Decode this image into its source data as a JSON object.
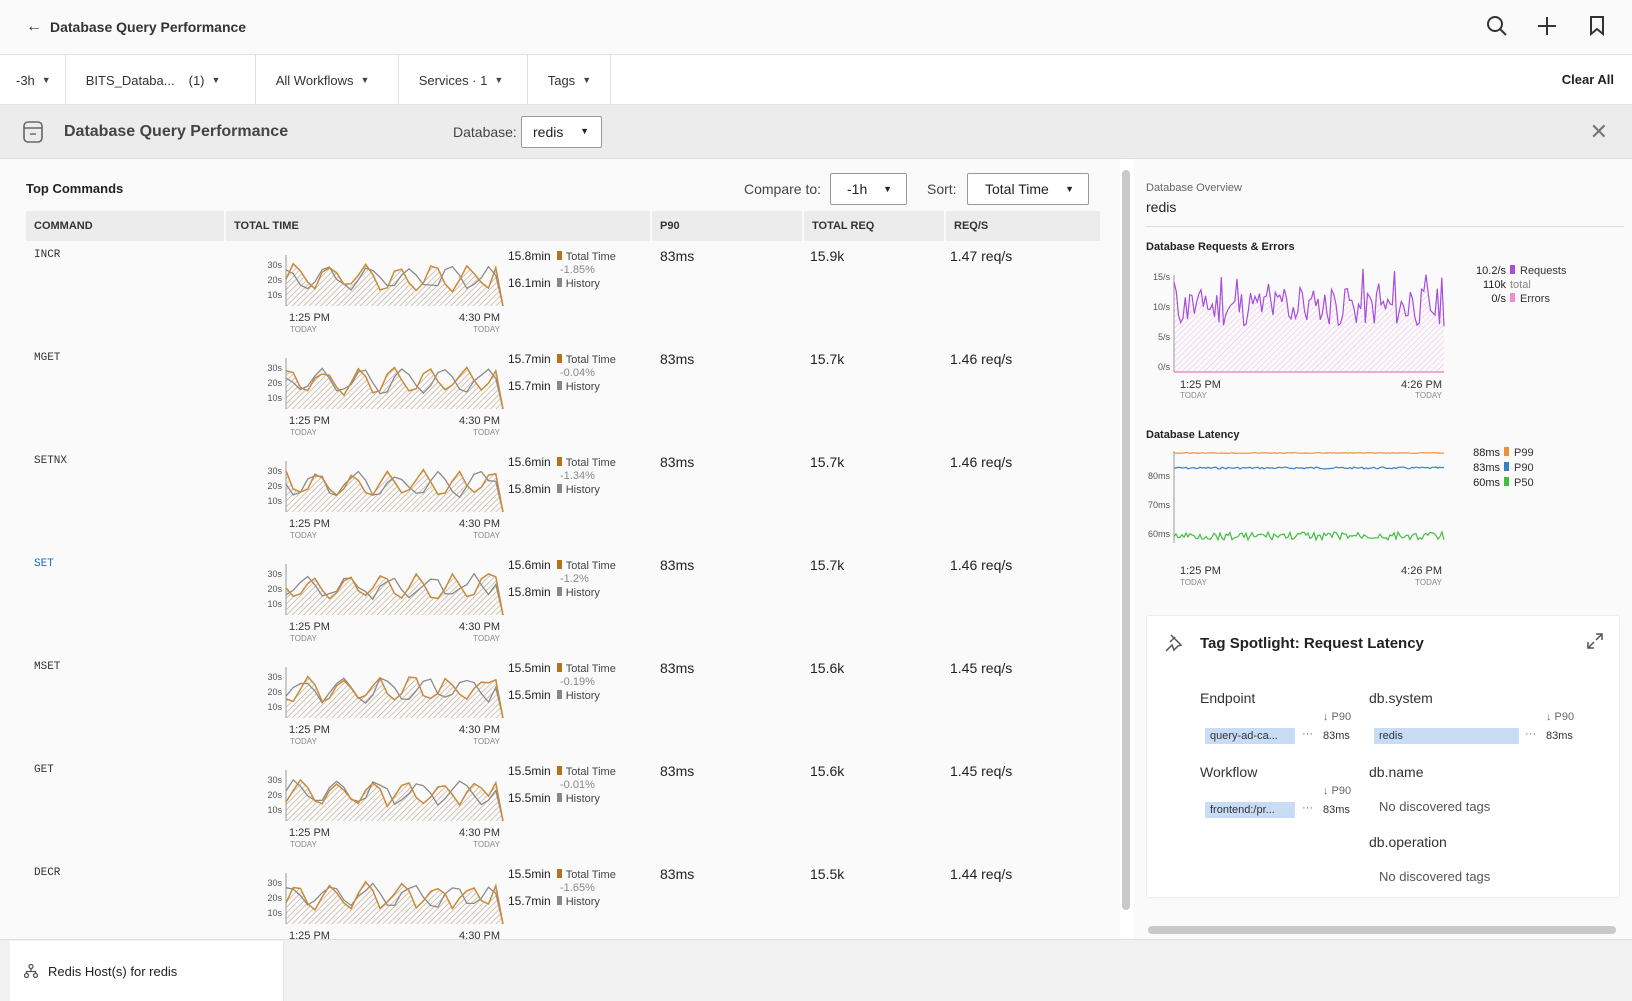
{
  "header": {
    "back_icon": "arrow-left-icon",
    "title": "Database Query Performance"
  },
  "filters": {
    "time": "-3h",
    "environment": "BITS_Databa...",
    "environment_count": "(1)",
    "workflows": "All Workflows",
    "services": "Services · 1",
    "tags": "Tags",
    "clear_all": "Clear All"
  },
  "panel": {
    "title": "Database Query Performance",
    "db_label": "Database:",
    "db_value": "redis"
  },
  "commands": {
    "title": "Top Commands",
    "compare_label": "Compare to:",
    "compare_value": "-1h",
    "sort_label": "Sort:",
    "sort_value": "Total Time",
    "columns": [
      "COMMAND",
      "TOTAL TIME",
      "P90",
      "TOTAL REQ",
      "REQ/S"
    ],
    "spark_axis": {
      "y": [
        "30s",
        "20s",
        "10s"
      ],
      "x_start": "1:25 PM",
      "x_end": "4:30 PM",
      "x_sub": "TODAY"
    },
    "legend": {
      "total": "Total Time",
      "history": "History",
      "total_color": "#b5711c",
      "history_color": "#888888"
    },
    "rows": [
      {
        "command": "INCR",
        "total": "15.8min",
        "change": "-1.85%",
        "history": "16.1min",
        "p90": "83ms",
        "total_req": "15.9k",
        "rps": "1.47 req/s"
      },
      {
        "command": "MGET",
        "total": "15.7min",
        "change": "-0.04%",
        "history": "15.7min",
        "p90": "83ms",
        "total_req": "15.7k",
        "rps": "1.46 req/s"
      },
      {
        "command": "SETNX",
        "total": "15.6min",
        "change": "-1.34%",
        "history": "15.8min",
        "p90": "83ms",
        "total_req": "15.7k",
        "rps": "1.46 req/s"
      },
      {
        "command": "SET",
        "total": "15.6min",
        "change": "-1.2%",
        "history": "15.8min",
        "p90": "83ms",
        "total_req": "15.7k",
        "rps": "1.46 req/s",
        "link": true
      },
      {
        "command": "MSET",
        "total": "15.5min",
        "change": "-0.19%",
        "history": "15.5min",
        "p90": "83ms",
        "total_req": "15.6k",
        "rps": "1.45 req/s"
      },
      {
        "command": "GET",
        "total": "15.5min",
        "change": "-0.01%",
        "history": "15.5min",
        "p90": "83ms",
        "total_req": "15.6k",
        "rps": "1.45 req/s"
      },
      {
        "command": "DECR",
        "total": "15.5min",
        "change": "-1.65%",
        "history": "15.7min",
        "p90": "83ms",
        "total_req": "15.5k",
        "rps": "1.44 req/s"
      }
    ]
  },
  "overview": {
    "title": "Database Overview",
    "db": "redis",
    "requests": {
      "title": "Database Requests & Errors",
      "y": [
        "15/s",
        "10/s",
        "5/s",
        "0/s"
      ],
      "x_start": "1:25 PM",
      "x_end": "4:26 PM",
      "x_sub": "TODAY",
      "legend": [
        {
          "value": "10.2/s",
          "label": "Requests",
          "color": "#a64ddc"
        },
        {
          "value": "110k",
          "label": "total",
          "color": ""
        },
        {
          "value": "0/s",
          "label": "Errors",
          "color": "#f08ccf"
        }
      ]
    },
    "latency": {
      "title": "Database Latency",
      "y": [
        "80ms",
        "70ms",
        "60ms"
      ],
      "x_start": "1:25 PM",
      "x_end": "4:26 PM",
      "x_sub": "TODAY",
      "legend": [
        {
          "value": "88ms",
          "label": "P99",
          "color": "#f0903a"
        },
        {
          "value": "83ms",
          "label": "P90",
          "color": "#3a7fc4"
        },
        {
          "value": "60ms",
          "label": "P50",
          "color": "#3fbf3f"
        }
      ]
    }
  },
  "spotlight": {
    "title": "Tag Spotlight: Request Latency",
    "p90": "↓ P90",
    "endpoint": {
      "label": "Endpoint",
      "tag": "query-ad-ca...",
      "value": "83ms"
    },
    "workflow": {
      "label": "Workflow",
      "tag": "frontend:/pr...",
      "value": "83ms"
    },
    "dbsystem": {
      "label": "db.system",
      "tag": "redis",
      "value": "83ms"
    },
    "dbname": {
      "label": "db.name",
      "none": "No discovered tags"
    },
    "dboperation": {
      "label": "db.operation",
      "none": "No discovered tags"
    }
  },
  "bottom": {
    "tab": "Redis Host(s) for redis"
  }
}
